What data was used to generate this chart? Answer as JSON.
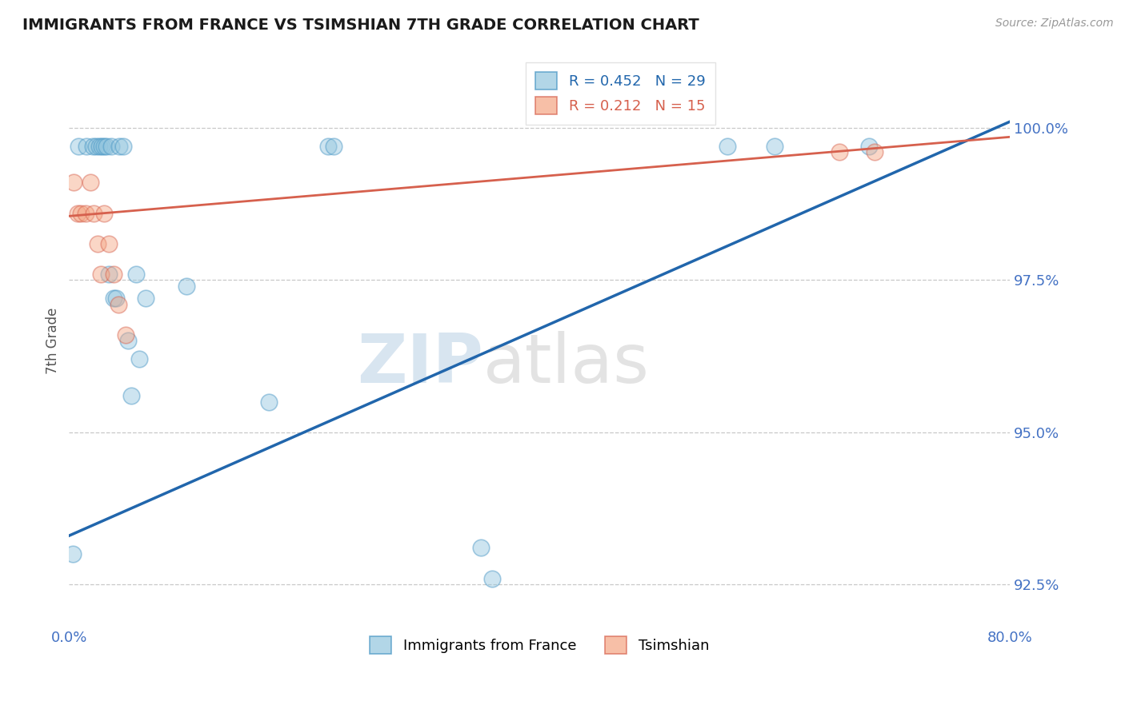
{
  "title": "IMMIGRANTS FROM FRANCE VS TSIMSHIAN 7TH GRADE CORRELATION CHART",
  "source_text": "Source: ZipAtlas.com",
  "ylabel": "7th Grade",
  "xlim": [
    0.0,
    80.0
  ],
  "ylim": [
    91.8,
    101.2
  ],
  "yticks": [
    92.5,
    95.0,
    97.5,
    100.0
  ],
  "xticks": [
    0.0,
    80.0
  ],
  "blue_scatter_x": [
    0.3,
    0.8,
    1.5,
    2.0,
    2.3,
    2.6,
    2.8,
    3.0,
    3.2,
    3.4,
    3.6,
    3.8,
    4.0,
    4.3,
    4.6,
    5.0,
    5.3,
    5.7,
    6.0,
    6.5,
    10.0,
    17.0,
    22.0,
    22.5,
    35.0,
    36.0,
    56.0,
    60.0,
    68.0
  ],
  "blue_scatter_y": [
    93.0,
    99.7,
    99.7,
    99.7,
    99.7,
    99.7,
    99.7,
    99.7,
    99.7,
    97.6,
    99.7,
    97.2,
    97.2,
    99.7,
    99.7,
    96.5,
    95.6,
    97.6,
    96.2,
    97.2,
    97.4,
    95.5,
    99.7,
    99.7,
    93.1,
    92.6,
    99.7,
    99.7,
    99.7
  ],
  "pink_scatter_x": [
    0.4,
    0.7,
    1.0,
    1.4,
    1.8,
    2.1,
    2.4,
    2.7,
    3.0,
    3.4,
    3.8,
    4.2,
    4.8,
    65.5,
    68.5
  ],
  "pink_scatter_y": [
    99.1,
    98.6,
    98.6,
    98.6,
    99.1,
    98.6,
    98.1,
    97.6,
    98.6,
    98.1,
    97.6,
    97.1,
    96.6,
    99.6,
    99.6
  ],
  "blue_line_x0": 0.0,
  "blue_line_x1": 80.0,
  "blue_line_y0": 93.3,
  "blue_line_y1": 100.1,
  "pink_line_x0": 0.0,
  "pink_line_x1": 80.0,
  "pink_line_y0": 98.55,
  "pink_line_y1": 99.85,
  "blue_color": "#92c5de",
  "blue_edge_color": "#4393c3",
  "pink_color": "#f4a582",
  "pink_edge_color": "#d6604d",
  "blue_line_color": "#2166ac",
  "pink_line_color": "#d6604d",
  "legend_blue_r": "R = 0.452",
  "legend_blue_n": "N = 29",
  "legend_pink_r": "R = 0.212",
  "legend_pink_n": "N = 15",
  "legend_blue_label": "Immigrants from France",
  "legend_pink_label": "Tsimshian",
  "watermark_zip": "ZIP",
  "watermark_atlas": "atlas",
  "background_color": "#ffffff",
  "grid_color": "#c8c8c8",
  "title_color": "#1a1a1a",
  "axis_label_color": "#555555",
  "tick_label_color": "#4472c4",
  "scatter_size": 220,
  "scatter_alpha": 0.45
}
